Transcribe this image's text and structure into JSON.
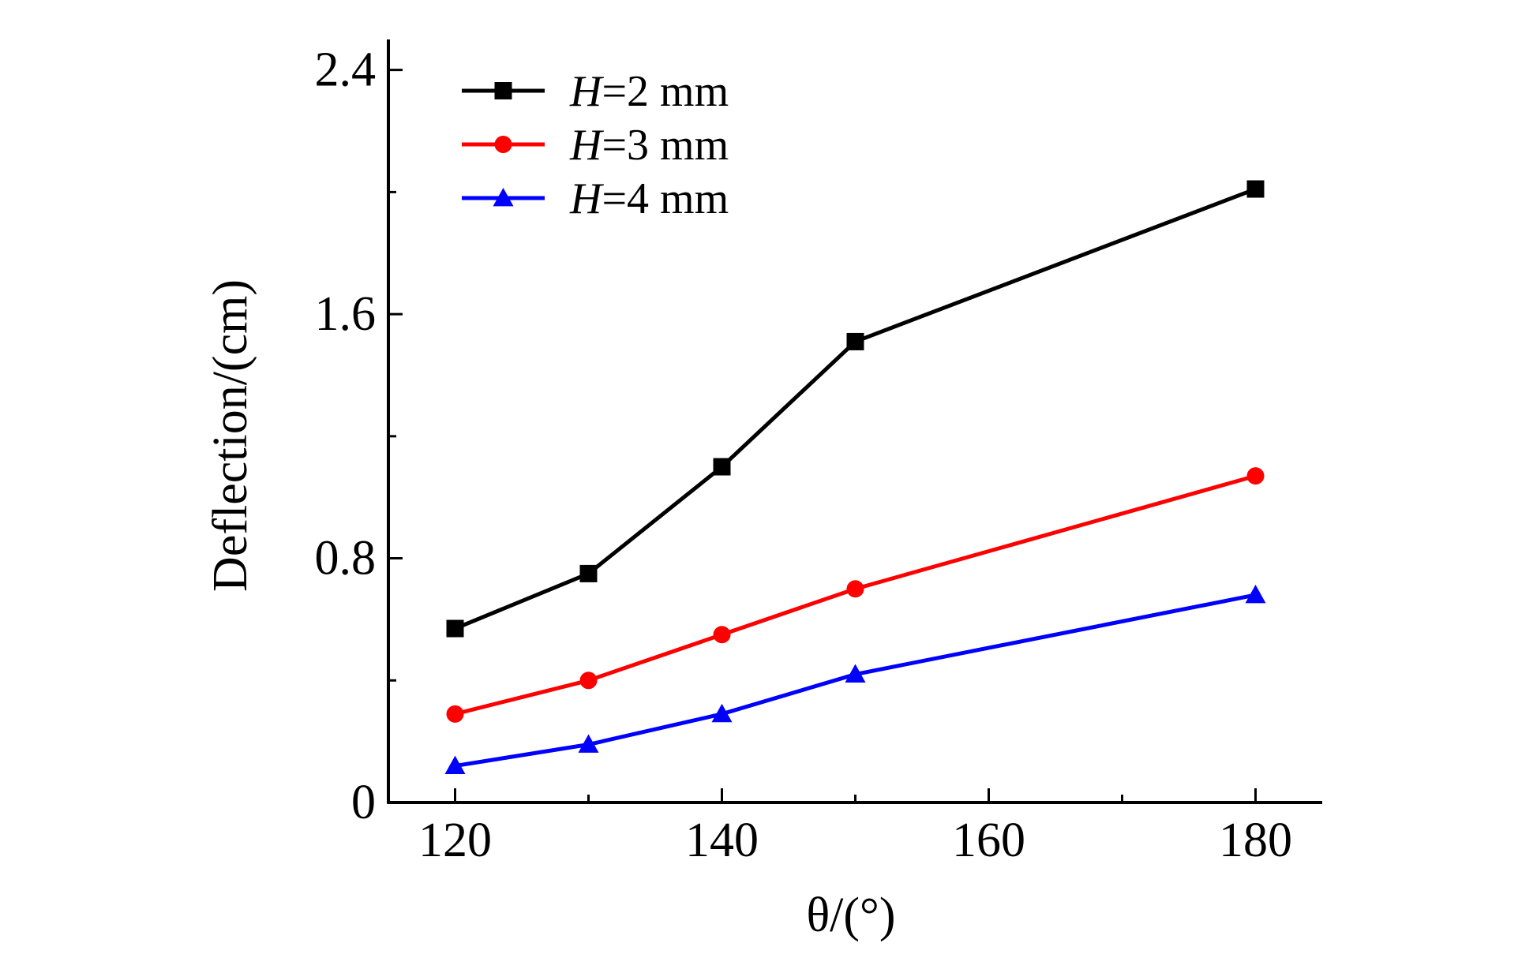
{
  "chart_data": {
    "type": "line",
    "title": "",
    "xlabel": "θ/(°)",
    "ylabel": "Deflection/(cm)",
    "x": [
      120,
      130,
      140,
      150,
      180
    ],
    "xlim": [
      115,
      185
    ],
    "ylim": [
      0,
      2.5
    ],
    "xticks": [
      120,
      140,
      160,
      180
    ],
    "xtick_labels": [
      "120",
      "140",
      "160",
      "180"
    ],
    "yticks": [
      0,
      0.8,
      1.6,
      2.4
    ],
    "ytick_labels": [
      "0",
      "0.8",
      "1.6",
      "2.4"
    ],
    "grid": false,
    "legend_position": "top-left",
    "series": [
      {
        "name": "H=2 mm",
        "var": "H",
        "rest": "=2 mm",
        "color": "#000000",
        "marker": "square",
        "values": [
          0.57,
          0.75,
          1.1,
          1.51,
          2.01
        ]
      },
      {
        "name": "H=3 mm",
        "var": "H",
        "rest": "=3 mm",
        "color": "#ff0000",
        "marker": "circle",
        "values": [
          0.29,
          0.4,
          0.55,
          0.7,
          1.07
        ]
      },
      {
        "name": "H=4 mm",
        "var": "H",
        "rest": "=4 mm",
        "color": "#0000ff",
        "marker": "triangle",
        "values": [
          0.12,
          0.19,
          0.29,
          0.42,
          0.68
        ]
      }
    ]
  }
}
